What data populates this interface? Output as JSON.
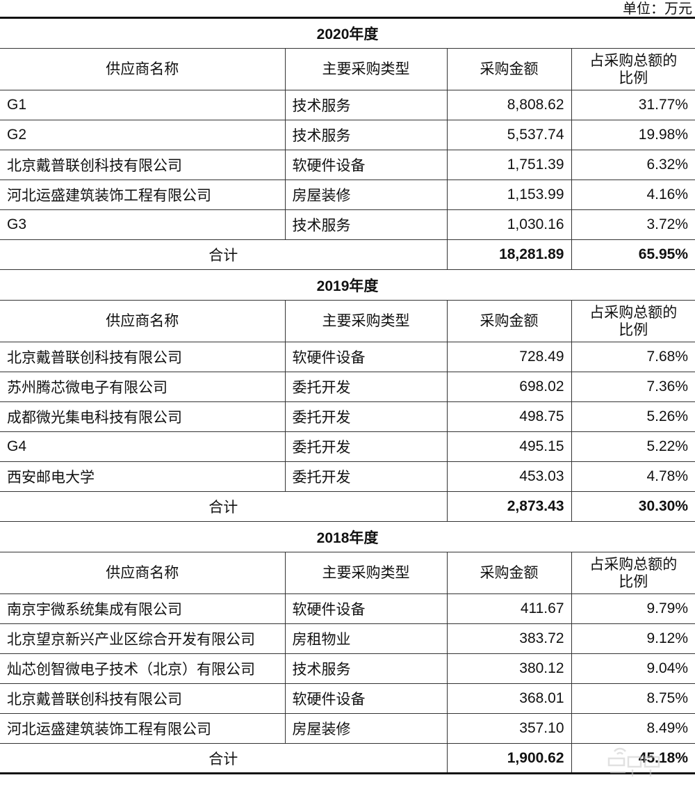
{
  "unit_label": "单位：万元",
  "headers": [
    "供应商名称",
    "主要采购类型",
    "采购金额",
    "占采购总额的\n比例"
  ],
  "watermark": "智东西",
  "sections": [
    {
      "year": "2020年度",
      "rows": [
        {
          "name": "G1",
          "type": "技术服务",
          "amount": "8,808.62",
          "ratio": "31.77%"
        },
        {
          "name": "G2",
          "type": "技术服务",
          "amount": "5,537.74",
          "ratio": "19.98%"
        },
        {
          "name": "北京戴普联创科技有限公司",
          "type": "软硬件设备",
          "amount": "1,751.39",
          "ratio": "6.32%"
        },
        {
          "name": "河北运盛建筑装饰工程有限公司",
          "type": "房屋装修",
          "amount": "1,153.99",
          "ratio": "4.16%"
        },
        {
          "name": "G3",
          "type": "技术服务",
          "amount": "1,030.16",
          "ratio": "3.72%"
        }
      ],
      "total": {
        "label": "合计",
        "amount": "18,281.89",
        "ratio": "65.95%"
      }
    },
    {
      "year": "2019年度",
      "rows": [
        {
          "name": "北京戴普联创科技有限公司",
          "type": "软硬件设备",
          "amount": "728.49",
          "ratio": "7.68%"
        },
        {
          "name": "苏州腾芯微电子有限公司",
          "type": "委托开发",
          "amount": "698.02",
          "ratio": "7.36%"
        },
        {
          "name": "成都微光集电科技有限公司",
          "type": "委托开发",
          "amount": "498.75",
          "ratio": "5.26%"
        },
        {
          "name": "G4",
          "type": "委托开发",
          "amount": "495.15",
          "ratio": "5.22%"
        },
        {
          "name": "西安邮电大学",
          "type": "委托开发",
          "amount": "453.03",
          "ratio": "4.78%"
        }
      ],
      "total": {
        "label": "合计",
        "amount": "2,873.43",
        "ratio": "30.30%"
      }
    },
    {
      "year": "2018年度",
      "rows": [
        {
          "name": "南京宇微系统集成有限公司",
          "type": "软硬件设备",
          "amount": "411.67",
          "ratio": "9.79%"
        },
        {
          "name": "北京望京新兴产业区综合开发有限公司",
          "type": "房租物业",
          "amount": "383.72",
          "ratio": "9.12%"
        },
        {
          "name": "灿芯创智微电子技术（北京）有限公司",
          "type": "技术服务",
          "amount": "380.12",
          "ratio": "9.04%"
        },
        {
          "name": "北京戴普联创科技有限公司",
          "type": "软硬件设备",
          "amount": "368.01",
          "ratio": "8.75%"
        },
        {
          "name": "河北运盛建筑装饰工程有限公司",
          "type": "房屋装修",
          "amount": "357.10",
          "ratio": "8.49%"
        }
      ],
      "total": {
        "label": "合计",
        "amount": "1,900.62",
        "ratio": "45.18%"
      }
    }
  ]
}
